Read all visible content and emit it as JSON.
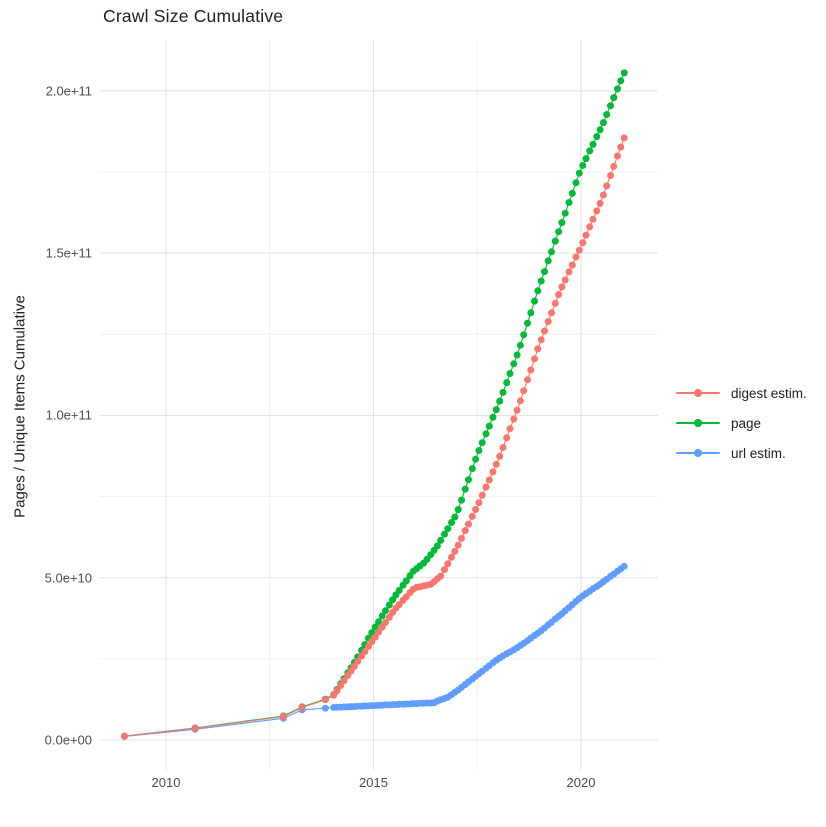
{
  "title": "Crawl Size Cumulative",
  "ylabel": "Pages / Unique Items Cumulative",
  "xlabel": "",
  "colors": {
    "digest": "#F8766D",
    "page": "#00BA38",
    "url": "#619CFF",
    "grid_major": "#E4E4E4",
    "grid_minor": "#F0F0F0",
    "axis_text": "#4D4D4D",
    "title_text": "#1F1F1F",
    "panel_background": "#FFFFFF"
  },
  "legend": {
    "position": "right",
    "items": [
      {
        "label": "digest estim.",
        "color": "#F8766D"
      },
      {
        "label": "page",
        "color": "#00BA38"
      },
      {
        "label": "url estim.",
        "color": "#619CFF"
      }
    ]
  },
  "chart_data": {
    "type": "line",
    "markers": true,
    "title": "Crawl Size Cumulative",
    "xlabel": "",
    "ylabel": "Pages / Unique Items Cumulative",
    "grid": "on",
    "legend_position": "right",
    "y_unit": "billions of items (multiply y values by 1e9)",
    "xlim": [
      2008.4,
      2021.85
    ],
    "ylim_billions": [
      -10,
      215.6
    ],
    "x_axis": {
      "ticks": [
        {
          "value": 2010,
          "label": "2010"
        },
        {
          "value": 2015,
          "label": "2015"
        },
        {
          "value": 2020,
          "label": "2020"
        }
      ],
      "minor": [
        2012.5,
        2017.5
      ]
    },
    "y_axis": {
      "ticks": [
        {
          "value_billions": 0,
          "label": "0.0e+00"
        },
        {
          "value_billions": 50,
          "label": "5.0e+10"
        },
        {
          "value_billions": 100,
          "label": "1.0e+11"
        },
        {
          "value_billions": 150,
          "label": "1.5e+11"
        },
        {
          "value_billions": 200,
          "label": "2.0e+11"
        }
      ],
      "minor_billions": [
        25,
        75,
        125,
        175
      ]
    },
    "draw_order": [
      1,
      2,
      0
    ],
    "x": [
      2009.0,
      2010.7,
      2012.83,
      2013.28,
      2013.84,
      2014.04,
      2014.12,
      2014.21,
      2014.29,
      2014.38,
      2014.46,
      2014.54,
      2014.62,
      2014.71,
      2014.79,
      2014.88,
      2014.96,
      2015.04,
      2015.12,
      2015.21,
      2015.29,
      2015.38,
      2015.46,
      2015.54,
      2015.62,
      2015.71,
      2015.79,
      2015.88,
      2015.96,
      2016.04,
      2016.12,
      2016.21,
      2016.29,
      2016.38,
      2016.46,
      2016.54,
      2016.62,
      2016.71,
      2016.79,
      2016.88,
      2016.96,
      2017.04,
      2017.12,
      2017.21,
      2017.29,
      2017.38,
      2017.46,
      2017.54,
      2017.62,
      2017.71,
      2017.79,
      2017.88,
      2017.96,
      2018.04,
      2018.12,
      2018.21,
      2018.29,
      2018.38,
      2018.46,
      2018.54,
      2018.62,
      2018.71,
      2018.79,
      2018.88,
      2018.96,
      2019.04,
      2019.12,
      2019.21,
      2019.29,
      2019.38,
      2019.46,
      2019.54,
      2019.62,
      2019.71,
      2019.79,
      2019.88,
      2019.96,
      2020.04,
      2020.12,
      2020.21,
      2020.29,
      2020.38,
      2020.46,
      2020.54,
      2020.62,
      2020.71,
      2020.79,
      2020.88,
      2020.96,
      2021.04
    ],
    "series": [
      {
        "name": "digest estim.",
        "color": "#F8766D",
        "y_billions": [
          1.2,
          3.6,
          7.2,
          10.0,
          12.4,
          13.8,
          15.2,
          16.8,
          18.3,
          19.9,
          21.3,
          22.7,
          24.2,
          25.8,
          27.2,
          28.8,
          30.3,
          31.7,
          33.2,
          34.8,
          36.2,
          37.8,
          39.3,
          40.6,
          41.7,
          43.0,
          44.1,
          45.4,
          46.5,
          47.0,
          47.2,
          47.5,
          47.7,
          48.0,
          48.8,
          49.7,
          50.5,
          52.5,
          54.3,
          56.3,
          58.1,
          60.0,
          62.1,
          64.5,
          66.5,
          68.9,
          71.0,
          73.1,
          75.4,
          77.9,
          80.1,
          82.6,
          84.9,
          87.4,
          90.1,
          93.1,
          95.9,
          98.9,
          101.6,
          104.5,
          107.6,
          111.0,
          114.0,
          117.4,
          120.5,
          123.3,
          126.0,
          128.9,
          131.6,
          134.5,
          137.2,
          139.6,
          141.7,
          144.2,
          146.3,
          148.8,
          150.9,
          153.2,
          155.5,
          158.1,
          160.4,
          163.0,
          165.3,
          167.9,
          170.7,
          173.9,
          176.7,
          179.9,
          182.7,
          185.5
        ]
      },
      {
        "name": "page",
        "color": "#00BA38",
        "y_billions": [
          1.2,
          3.7,
          7.4,
          10.2,
          12.6,
          14.0,
          15.6,
          17.3,
          18.9,
          20.7,
          22.2,
          23.9,
          25.6,
          27.6,
          29.4,
          31.4,
          33.1,
          34.8,
          36.4,
          38.2,
          39.8,
          41.6,
          43.2,
          44.7,
          46.1,
          47.7,
          49.0,
          50.6,
          52.0,
          52.8,
          53.6,
          54.5,
          55.7,
          57.1,
          58.4,
          59.8,
          61.5,
          63.4,
          65.1,
          67.0,
          68.7,
          71.0,
          73.9,
          77.3,
          80.2,
          83.6,
          86.5,
          89.2,
          91.6,
          94.3,
          96.7,
          99.4,
          101.8,
          104.4,
          107.1,
          110.1,
          112.9,
          115.9,
          118.6,
          121.6,
          124.8,
          128.4,
          131.6,
          135.2,
          138.4,
          141.4,
          144.3,
          147.6,
          150.4,
          153.7,
          156.6,
          159.4,
          162.3,
          165.6,
          168.4,
          171.7,
          174.6,
          177.0,
          179.1,
          181.5,
          183.5,
          185.9,
          188.0,
          190.2,
          192.7,
          195.4,
          197.9,
          200.6,
          203.1,
          205.5
        ]
      },
      {
        "name": "url estim.",
        "color": "#619CFF",
        "y_billions": [
          1.1,
          3.3,
          6.7,
          9.3,
          9.8,
          10.0,
          10.1,
          10.1,
          10.2,
          10.2,
          10.3,
          10.3,
          10.4,
          10.4,
          10.5,
          10.5,
          10.6,
          10.6,
          10.7,
          10.7,
          10.8,
          10.8,
          10.9,
          10.9,
          11.0,
          11.0,
          11.1,
          11.1,
          11.2,
          11.2,
          11.3,
          11.3,
          11.4,
          11.4,
          11.5,
          12.0,
          12.4,
          12.8,
          13.2,
          14.0,
          14.7,
          15.4,
          16.2,
          17.1,
          17.9,
          18.8,
          19.6,
          20.4,
          21.2,
          22.1,
          22.9,
          23.8,
          24.6,
          25.3,
          25.9,
          26.6,
          27.1,
          27.8,
          28.4,
          29.1,
          29.8,
          30.6,
          31.4,
          32.2,
          32.9,
          33.7,
          34.5,
          35.5,
          36.3,
          37.3,
          38.1,
          38.9,
          39.8,
          40.8,
          41.7,
          42.7,
          43.6,
          44.4,
          45.1,
          45.8,
          46.6,
          47.3,
          48.0,
          48.8,
          49.5,
          50.4,
          51.1,
          52.0,
          52.7,
          53.5
        ]
      }
    ]
  }
}
